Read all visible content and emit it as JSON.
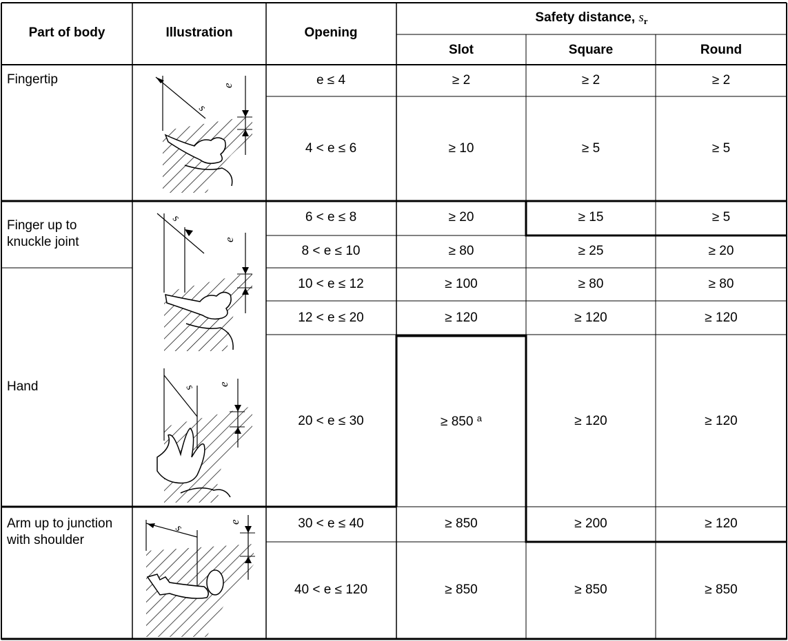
{
  "header": {
    "part_of_body": "Part of body",
    "illustration": "Illustration",
    "opening": "Opening",
    "safety_distance": "Safety distance, ",
    "safety_symbol": "s",
    "safety_sub": "r",
    "slot": "Slot",
    "square": "Square",
    "round": "Round"
  },
  "body_parts": {
    "fingertip": "Fingertip",
    "finger_line1": "Finger up to",
    "finger_line2": "knuckle joint",
    "hand": "Hand",
    "arm_line1": "Arm up to junction",
    "arm_line2": "with shoulder"
  },
  "illustration_labels": {
    "s": "s",
    "r": "r",
    "e": "e"
  },
  "rows": [
    {
      "opening": "e ≤ 4",
      "slot": "≥ 2",
      "slot_note": "",
      "square": "≥ 2",
      "round": "≥ 2"
    },
    {
      "opening": "4 < e ≤ 6",
      "slot": "≥ 10",
      "slot_note": "",
      "square": "≥ 5",
      "round": "≥ 5"
    },
    {
      "opening": "6 < e ≤ 8",
      "slot": "≥ 20",
      "slot_note": "",
      "square": "≥ 15",
      "round": "≥ 5"
    },
    {
      "opening": "8 < e ≤ 10",
      "slot": "≥ 80",
      "slot_note": "",
      "square": "≥ 25",
      "round": "≥ 20"
    },
    {
      "opening": "10 < e ≤ 12",
      "slot": "≥ 100",
      "slot_note": "",
      "square": "≥ 80",
      "round": "≥ 80"
    },
    {
      "opening": "12 < e ≤ 20",
      "slot": "≥ 120",
      "slot_note": "",
      "square": "≥ 120",
      "round": "≥ 120"
    },
    {
      "opening": "20 < e ≤ 30",
      "slot": "≥ 850",
      "slot_note": "a",
      "square": "≥ 120",
      "round": "≥ 120"
    },
    {
      "opening": "30 < e ≤ 40",
      "slot": "≥ 850",
      "slot_note": "",
      "square": "≥ 200",
      "round": "≥ 120"
    },
    {
      "opening": "40 < e ≤ 120",
      "slot": "≥ 850",
      "slot_note": "",
      "square": "≥ 850",
      "round": "≥ 850"
    }
  ]
}
